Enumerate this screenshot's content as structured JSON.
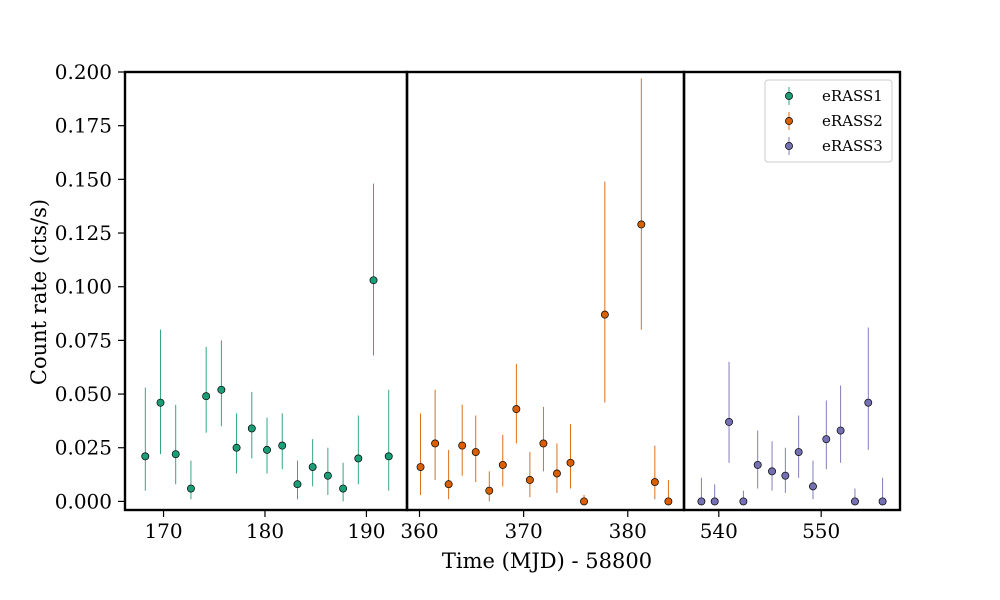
{
  "chart_data": {
    "type": "scatter",
    "title": "",
    "xlabel": "Time (MJD) - 58800",
    "ylabel": "Count rate (cts/s)",
    "ylim": [
      -0.004,
      0.2
    ],
    "yticks": [
      0.0,
      0.025,
      0.05,
      0.075,
      0.1,
      0.125,
      0.15,
      0.175,
      0.2
    ],
    "ytick_labels": [
      "0.000",
      "0.025",
      "0.050",
      "0.075",
      "0.100",
      "0.125",
      "0.150",
      "0.175",
      "0.200"
    ],
    "grid": false,
    "legend_location": "top-right",
    "panels": [
      {
        "xlim": [
          166.2,
          194.0
        ],
        "xticks": [
          170,
          180,
          190
        ],
        "xtick_labels": [
          "170",
          "180",
          "190"
        ]
      },
      {
        "xlim": [
          358.8,
          385.4
        ],
        "xticks": [
          360,
          370,
          380
        ],
        "xtick_labels": [
          "360",
          "370",
          "380"
        ]
      },
      {
        "xlim": [
          536.6,
          557.7
        ],
        "xticks": [
          540,
          550
        ],
        "xtick_labels": [
          "540",
          "550"
        ]
      }
    ],
    "series": [
      {
        "name": "eRASS1",
        "color": "#1b9e77",
        "panel": 0,
        "points": [
          {
            "x": 168.2,
            "y": 0.021,
            "lo": 0.005,
            "hi": 0.053
          },
          {
            "x": 169.7,
            "y": 0.046,
            "lo": 0.022,
            "hi": 0.08
          },
          {
            "x": 171.2,
            "y": 0.022,
            "lo": 0.008,
            "hi": 0.045
          },
          {
            "x": 172.7,
            "y": 0.006,
            "lo": 0.001,
            "hi": 0.019
          },
          {
            "x": 174.2,
            "y": 0.049,
            "lo": 0.032,
            "hi": 0.072
          },
          {
            "x": 175.7,
            "y": 0.052,
            "lo": 0.035,
            "hi": 0.075
          },
          {
            "x": 177.2,
            "y": 0.025,
            "lo": 0.013,
            "hi": 0.041
          },
          {
            "x": 178.7,
            "y": 0.034,
            "lo": 0.02,
            "hi": 0.051
          },
          {
            "x": 180.2,
            "y": 0.024,
            "lo": 0.013,
            "hi": 0.039
          },
          {
            "x": 181.7,
            "y": 0.026,
            "lo": 0.015,
            "hi": 0.041
          },
          {
            "x": 183.2,
            "y": 0.008,
            "lo": 0.001,
            "hi": 0.019
          },
          {
            "x": 184.7,
            "y": 0.016,
            "lo": 0.007,
            "hi": 0.029
          },
          {
            "x": 186.2,
            "y": 0.012,
            "lo": 0.003,
            "hi": 0.025
          },
          {
            "x": 187.7,
            "y": 0.006,
            "lo": 0.0,
            "hi": 0.018
          },
          {
            "x": 189.2,
            "y": 0.02,
            "lo": 0.008,
            "hi": 0.04
          },
          {
            "x": 190.7,
            "y": 0.103,
            "lo": 0.068,
            "hi": 0.148
          },
          {
            "x": 192.2,
            "y": 0.021,
            "lo": 0.005,
            "hi": 0.052
          }
        ]
      },
      {
        "name": "eRASS2",
        "color": "#d95f02",
        "panel": 1,
        "points": [
          {
            "x": 360.1,
            "y": 0.016,
            "lo": 0.003,
            "hi": 0.041
          },
          {
            "x": 361.5,
            "y": 0.027,
            "lo": 0.01,
            "hi": 0.052
          },
          {
            "x": 362.8,
            "y": 0.008,
            "lo": 0.001,
            "hi": 0.024
          },
          {
            "x": 364.1,
            "y": 0.026,
            "lo": 0.012,
            "hi": 0.045
          },
          {
            "x": 365.4,
            "y": 0.023,
            "lo": 0.009,
            "hi": 0.04
          },
          {
            "x": 366.7,
            "y": 0.005,
            "lo": 0.0,
            "hi": 0.014
          },
          {
            "x": 368.0,
            "y": 0.017,
            "lo": 0.007,
            "hi": 0.031
          },
          {
            "x": 369.3,
            "y": 0.043,
            "lo": 0.027,
            "hi": 0.064
          },
          {
            "x": 370.6,
            "y": 0.01,
            "lo": 0.002,
            "hi": 0.023
          },
          {
            "x": 371.9,
            "y": 0.027,
            "lo": 0.014,
            "hi": 0.044
          },
          {
            "x": 373.2,
            "y": 0.013,
            "lo": 0.004,
            "hi": 0.027
          },
          {
            "x": 374.5,
            "y": 0.018,
            "lo": 0.006,
            "hi": 0.036
          },
          {
            "x": 375.8,
            "y": 0.0,
            "lo": 0.0,
            "hi": 0.003
          },
          {
            "x": 377.8,
            "y": 0.087,
            "lo": 0.046,
            "hi": 0.149
          },
          {
            "x": 381.3,
            "y": 0.129,
            "lo": 0.08,
            "hi": 0.197
          },
          {
            "x": 382.6,
            "y": 0.009,
            "lo": 0.001,
            "hi": 0.026
          },
          {
            "x": 383.9,
            "y": 0.0,
            "lo": 0.0,
            "hi": 0.01
          }
        ]
      },
      {
        "name": "eRASS3",
        "color": "#7570b3",
        "panel": 2,
        "points": [
          {
            "x": 538.3,
            "y": 0.0,
            "lo": 0.0,
            "hi": 0.011
          },
          {
            "x": 539.6,
            "y": 0.0,
            "lo": 0.0,
            "hi": 0.008
          },
          {
            "x": 541.0,
            "y": 0.037,
            "lo": 0.018,
            "hi": 0.065
          },
          {
            "x": 542.4,
            "y": 0.0,
            "lo": 0.0,
            "hi": 0.005
          },
          {
            "x": 543.8,
            "y": 0.017,
            "lo": 0.006,
            "hi": 0.033
          },
          {
            "x": 545.2,
            "y": 0.014,
            "lo": 0.005,
            "hi": 0.028
          },
          {
            "x": 546.5,
            "y": 0.012,
            "lo": 0.004,
            "hi": 0.025
          },
          {
            "x": 547.8,
            "y": 0.023,
            "lo": 0.011,
            "hi": 0.04
          },
          {
            "x": 549.2,
            "y": 0.007,
            "lo": 0.001,
            "hi": 0.019
          },
          {
            "x": 550.5,
            "y": 0.029,
            "lo": 0.015,
            "hi": 0.047
          },
          {
            "x": 551.9,
            "y": 0.033,
            "lo": 0.018,
            "hi": 0.054
          },
          {
            "x": 553.3,
            "y": 0.0,
            "lo": 0.0,
            "hi": 0.006
          },
          {
            "x": 554.6,
            "y": 0.046,
            "lo": 0.024,
            "hi": 0.081
          },
          {
            "x": 556.0,
            "y": 0.0,
            "lo": 0.0,
            "hi": 0.011
          }
        ]
      }
    ]
  }
}
